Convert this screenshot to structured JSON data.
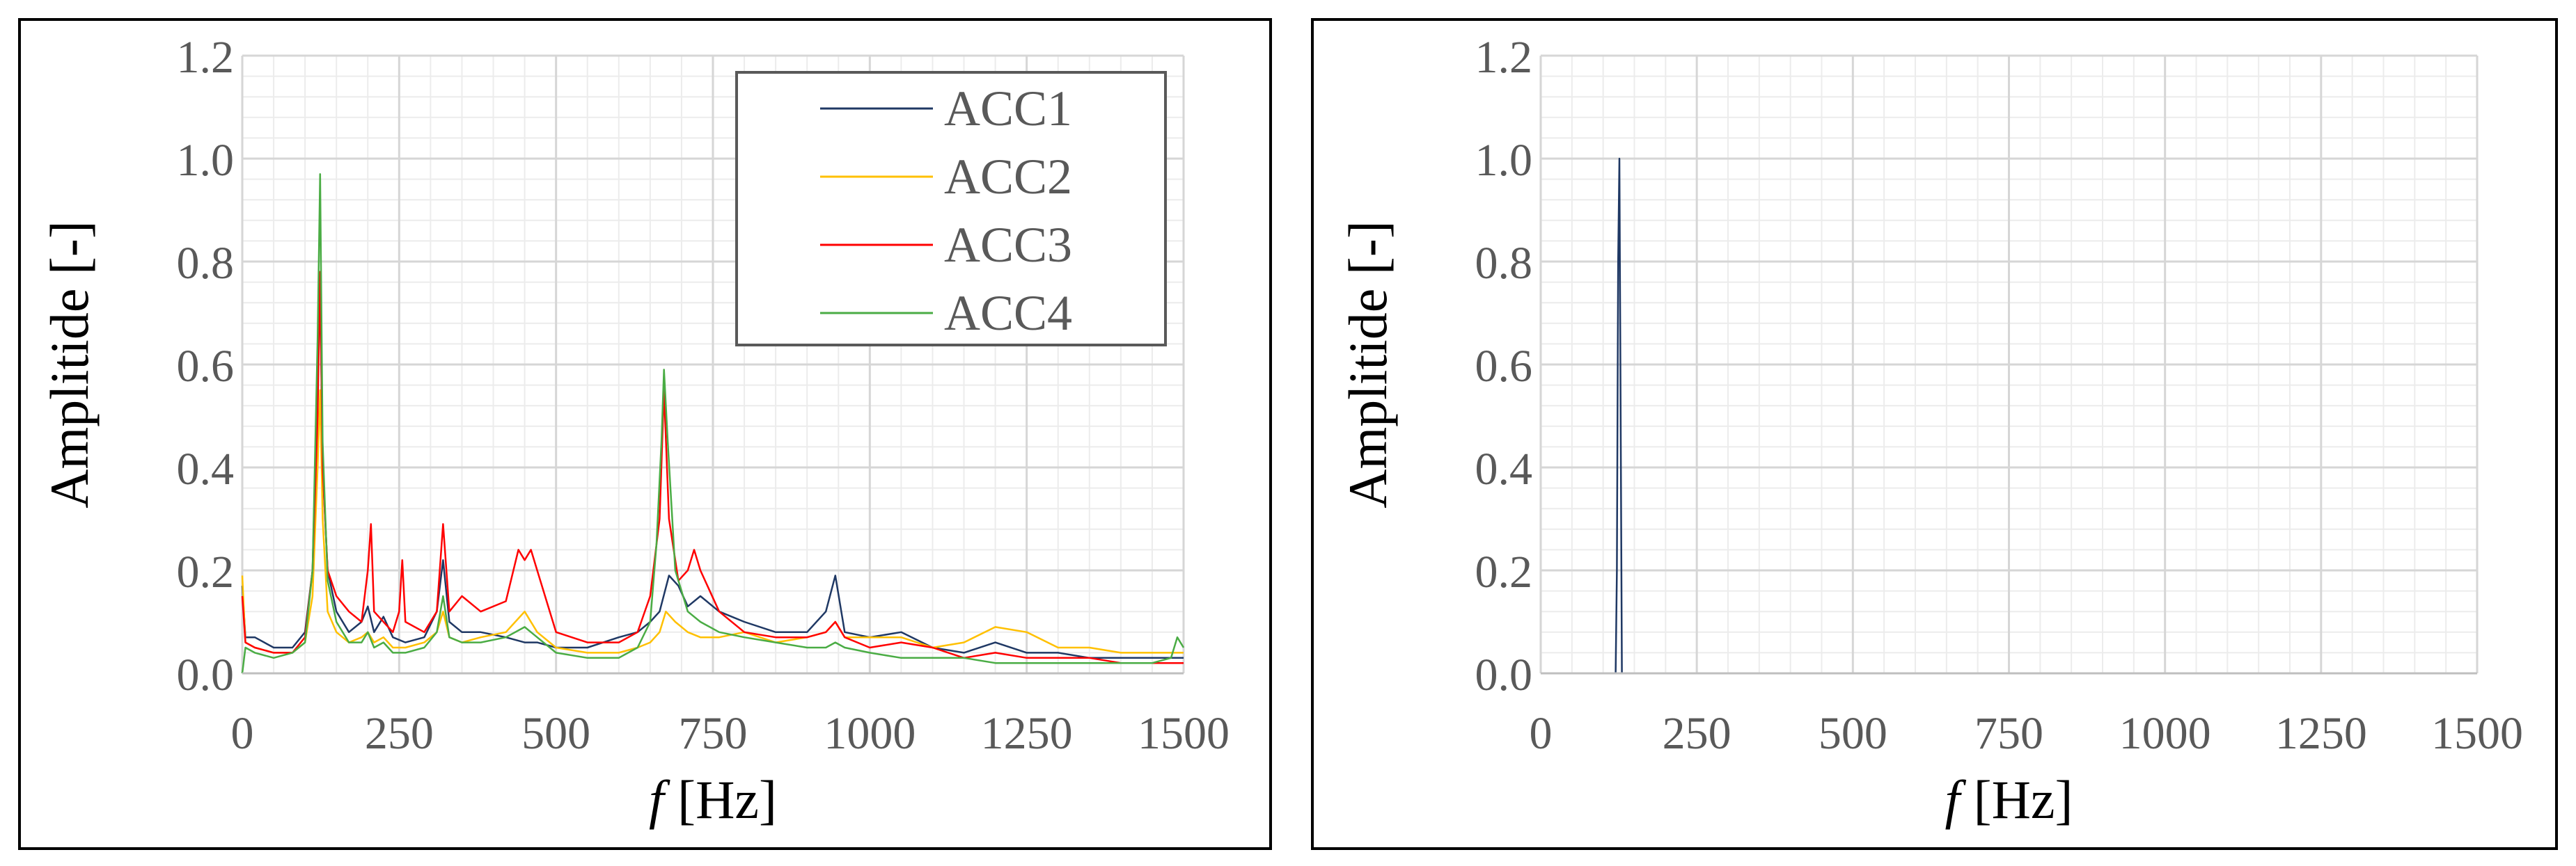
{
  "chart_data": [
    {
      "type": "line",
      "xlabel_italic": "f",
      "xlabel_rest": " [Hz]",
      "ylabel": "Amplitide [-]",
      "xlim": [
        0,
        1500
      ],
      "ylim": [
        0,
        1.2
      ],
      "x_ticks": [
        0,
        250,
        500,
        750,
        1000,
        1250,
        1500
      ],
      "x_tick_labels": [
        "0",
        "250",
        "500",
        "750",
        "1000",
        "1250",
        "1500"
      ],
      "y_ticks": [
        0,
        0.2,
        0.4,
        0.6,
        0.8,
        1.0,
        1.2
      ],
      "y_tick_labels": [
        "0.0",
        "0.2",
        "0.4",
        "0.6",
        "0.8",
        "1.0",
        "1.2"
      ],
      "grid": true,
      "legend_position": "top-right",
      "series": [
        {
          "name": "ACC1",
          "color": "#1f3864",
          "x": [
            0,
            5,
            20,
            50,
            80,
            100,
            112,
            120,
            124,
            128,
            136,
            150,
            170,
            190,
            200,
            210,
            225,
            240,
            260,
            290,
            310,
            320,
            330,
            350,
            380,
            420,
            450,
            470,
            500,
            550,
            600,
            630,
            650,
            665,
            680,
            695,
            710,
            730,
            760,
            800,
            850,
            900,
            930,
            945,
            960,
            1000,
            1050,
            1100,
            1150,
            1200,
            1250,
            1300,
            1350,
            1400,
            1450,
            1500
          ],
          "y": [
            0.17,
            0.07,
            0.07,
            0.05,
            0.05,
            0.08,
            0.2,
            0.58,
            0.76,
            0.4,
            0.2,
            0.12,
            0.08,
            0.1,
            0.13,
            0.08,
            0.11,
            0.07,
            0.06,
            0.07,
            0.12,
            0.22,
            0.1,
            0.08,
            0.08,
            0.07,
            0.06,
            0.06,
            0.05,
            0.05,
            0.07,
            0.08,
            0.1,
            0.12,
            0.19,
            0.17,
            0.13,
            0.15,
            0.12,
            0.1,
            0.08,
            0.08,
            0.12,
            0.19,
            0.08,
            0.07,
            0.08,
            0.05,
            0.04,
            0.06,
            0.04,
            0.04,
            0.03,
            0.03,
            0.03,
            0.03
          ]
        },
        {
          "name": "ACC2",
          "color": "#ffc000",
          "x": [
            0,
            5,
            20,
            50,
            80,
            100,
            112,
            120,
            124,
            128,
            136,
            150,
            170,
            190,
            200,
            210,
            225,
            240,
            260,
            290,
            310,
            320,
            330,
            350,
            380,
            420,
            450,
            470,
            500,
            550,
            600,
            630,
            650,
            665,
            675,
            690,
            710,
            730,
            760,
            800,
            850,
            900,
            930,
            945,
            960,
            1000,
            1050,
            1100,
            1150,
            1200,
            1250,
            1300,
            1350,
            1400,
            1450,
            1500
          ],
          "y": [
            0.19,
            0.06,
            0.05,
            0.04,
            0.04,
            0.06,
            0.15,
            0.4,
            0.55,
            0.3,
            0.12,
            0.08,
            0.06,
            0.07,
            0.08,
            0.06,
            0.07,
            0.05,
            0.05,
            0.06,
            0.08,
            0.12,
            0.07,
            0.06,
            0.07,
            0.08,
            0.12,
            0.08,
            0.05,
            0.04,
            0.04,
            0.05,
            0.06,
            0.08,
            0.12,
            0.1,
            0.08,
            0.07,
            0.07,
            0.08,
            0.06,
            0.07,
            0.08,
            0.1,
            0.07,
            0.07,
            0.07,
            0.05,
            0.06,
            0.09,
            0.08,
            0.05,
            0.05,
            0.04,
            0.04,
            0.04
          ]
        },
        {
          "name": "ACC3",
          "color": "#ff0000",
          "x": [
            0,
            5,
            20,
            50,
            80,
            100,
            112,
            120,
            124,
            128,
            136,
            150,
            170,
            190,
            200,
            205,
            210,
            225,
            240,
            250,
            255,
            260,
            290,
            310,
            320,
            330,
            350,
            380,
            420,
            440,
            450,
            460,
            470,
            500,
            550,
            600,
            630,
            650,
            665,
            672,
            680,
            695,
            710,
            720,
            730,
            760,
            800,
            850,
            900,
            930,
            945,
            960,
            1000,
            1050,
            1100,
            1150,
            1200,
            1250,
            1300,
            1350,
            1400,
            1450,
            1500
          ],
          "y": [
            0.15,
            0.06,
            0.05,
            0.04,
            0.04,
            0.07,
            0.2,
            0.5,
            0.78,
            0.4,
            0.2,
            0.15,
            0.12,
            0.1,
            0.2,
            0.29,
            0.12,
            0.1,
            0.08,
            0.12,
            0.22,
            0.1,
            0.08,
            0.12,
            0.29,
            0.12,
            0.15,
            0.12,
            0.14,
            0.24,
            0.22,
            0.24,
            0.2,
            0.08,
            0.06,
            0.06,
            0.08,
            0.15,
            0.3,
            0.55,
            0.3,
            0.18,
            0.2,
            0.24,
            0.2,
            0.12,
            0.08,
            0.07,
            0.07,
            0.08,
            0.1,
            0.07,
            0.05,
            0.06,
            0.05,
            0.03,
            0.04,
            0.03,
            0.03,
            0.03,
            0.02,
            0.02,
            0.02
          ]
        },
        {
          "name": "ACC4",
          "color": "#4aac44",
          "x": [
            0,
            5,
            20,
            50,
            80,
            100,
            112,
            120,
            124,
            128,
            136,
            150,
            170,
            190,
            200,
            210,
            225,
            240,
            260,
            290,
            310,
            320,
            330,
            350,
            380,
            420,
            450,
            470,
            500,
            550,
            600,
            630,
            650,
            660,
            668,
            672,
            678,
            690,
            710,
            730,
            760,
            800,
            850,
            900,
            930,
            945,
            960,
            1000,
            1050,
            1100,
            1150,
            1200,
            1250,
            1300,
            1350,
            1400,
            1450,
            1480,
            1490,
            1500
          ],
          "y": [
            0.0,
            0.05,
            0.04,
            0.03,
            0.04,
            0.06,
            0.2,
            0.65,
            0.97,
            0.45,
            0.18,
            0.1,
            0.06,
            0.06,
            0.08,
            0.05,
            0.06,
            0.04,
            0.04,
            0.05,
            0.08,
            0.15,
            0.07,
            0.06,
            0.06,
            0.07,
            0.09,
            0.07,
            0.04,
            0.03,
            0.03,
            0.05,
            0.1,
            0.25,
            0.45,
            0.59,
            0.45,
            0.2,
            0.12,
            0.1,
            0.08,
            0.07,
            0.06,
            0.05,
            0.05,
            0.06,
            0.05,
            0.04,
            0.03,
            0.03,
            0.03,
            0.02,
            0.02,
            0.02,
            0.02,
            0.02,
            0.02,
            0.03,
            0.07,
            0.05
          ]
        }
      ]
    },
    {
      "type": "line",
      "xlabel_italic": "f",
      "xlabel_rest": " [Hz]",
      "ylabel": "Amplitide [-]",
      "xlim": [
        0,
        1500
      ],
      "ylim": [
        0,
        1.2
      ],
      "x_ticks": [
        0,
        250,
        500,
        750,
        1000,
        1250,
        1500
      ],
      "x_tick_labels": [
        "0",
        "250",
        "500",
        "750",
        "1000",
        "1250",
        "1500"
      ],
      "y_ticks": [
        0,
        0.2,
        0.4,
        0.6,
        0.8,
        1.0,
        1.2
      ],
      "y_tick_labels": [
        "0.0",
        "0.2",
        "0.4",
        "0.6",
        "0.8",
        "1.0",
        "1.2"
      ],
      "grid": true,
      "series": [
        {
          "color": "#1f3864",
          "x": [
            0,
            120,
            122,
            124,
            126,
            128,
            130,
            1500
          ],
          "y": [
            0,
            0,
            0.2,
            0.8,
            1.0,
            0.5,
            0,
            0
          ]
        }
      ]
    }
  ]
}
